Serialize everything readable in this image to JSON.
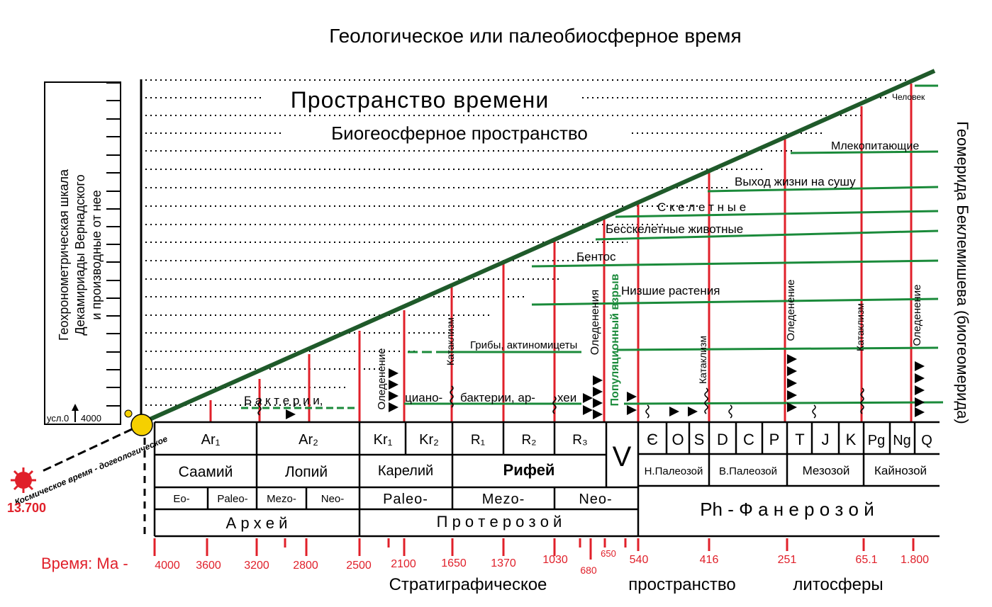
{
  "title": "Геологическое или палеобиосферное время",
  "space_title": "Пространство времени",
  "biogeo_title": "Биогеосферное пространство",
  "left_scale_label_1": "Геохронометрическая шкала",
  "left_scale_label_2": "Декамириады  Вернадского",
  "left_scale_label_3": "и производные от нее",
  "left_scale_bottom": "усл.0",
  "left_scale_value": "4000",
  "right_label": "Геомерида Беклемишева (биогеомерида)",
  "cosmic_time": "Космическое время - догеологическое",
  "cosmic_value": "13.700",
  "time_label": "Время: Ма -",
  "bottom_caption_1": "Стратиграфическое",
  "bottom_caption_2": "пространство",
  "bottom_caption_3": "литосферы",
  "life_labels": {
    "bacteria1": "Б а к т е р и и,",
    "ciano": "циано-",
    "bacteria2": "бактерии, ар-",
    "archaea": "хеи",
    "fungi": "Грибы, актиномицеты",
    "low_plants": "Низшие растения",
    "benthos": "Бентос",
    "skeletless": "Бесскелетные  животные",
    "skeletal": "С к е л е т н ы е",
    "land": "Выход   жизни  на   сушу",
    "mammals": "Млекопитающие",
    "human": "Человек"
  },
  "event_labels": {
    "glaciation": "Оледенение",
    "cataclysm": "Катаклизм",
    "glaciations": "Оледенения",
    "pop_boom": "Популяционный взрыв"
  },
  "row1": [
    "Ar₁",
    "Ar₂",
    "Kr₁",
    "Kr₂",
    "R₁",
    "R₂",
    "R₃",
    "Є",
    "O",
    "S",
    "D",
    "C",
    "P",
    "T",
    "J",
    "K",
    "Pg",
    "Ng",
    "Q"
  ],
  "v_label": "V",
  "row2": [
    "Саамий",
    "Лопий",
    "Карелий",
    "Рифей",
    "Н.Палеозой",
    "В.Палеозой",
    "Мезозой",
    "Кайнозой"
  ],
  "row3": [
    "Eo-",
    "Paleo-",
    "Mezo-",
    "Neo-",
    "Paleo-",
    "Mezo-",
    "Neo-"
  ],
  "ph_label": "Ph - Ф а н е р о з о й",
  "row4": [
    "А р х е й",
    "П р о т е р о з о й"
  ],
  "ticks": [
    "4000",
    "3600",
    "3200",
    "2800",
    "2500",
    "2100",
    "1650",
    "1370",
    "1030",
    "680",
    "650",
    "540",
    "416",
    "251",
    "65.1",
    "1.800"
  ],
  "colors": {
    "red": "#e0202a",
    "green": "#1a8a3a",
    "dark_green": "#1f5a2a",
    "sun": "#f5d000"
  }
}
